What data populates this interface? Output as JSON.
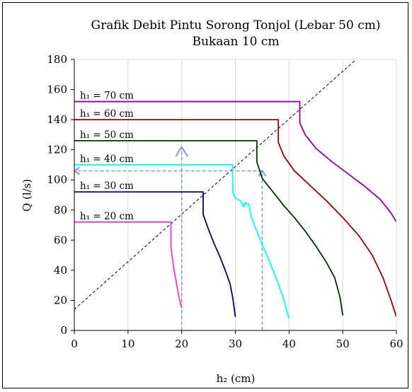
{
  "chart_data": {
    "type": "line",
    "title": "Grafik Debit Pintu Sorong Tonjol (Lebar 50 cm)",
    "subtitle": "Bukaan 10 cm",
    "xlabel": "h₂ (cm)",
    "ylabel": "Q (l/s)",
    "xlim": [
      0,
      60
    ],
    "ylim": [
      0,
      180
    ],
    "xticks": [
      "0",
      "10",
      "20",
      "30",
      "40",
      "50",
      "60"
    ],
    "yticks": [
      "0",
      "20",
      "40",
      "60",
      "80",
      "100",
      "120",
      "140",
      "160",
      "180"
    ],
    "grid": "vertical",
    "series": [
      {
        "name": "h₁ = 20 cm",
        "color": "#ff33cc",
        "x": [
          0,
          18,
          18,
          18.5,
          19,
          19.5,
          20
        ],
        "y": [
          72,
          72,
          55,
          42,
          32,
          22,
          15
        ]
      },
      {
        "name": "h₁ = 30 cm",
        "color": "#000066",
        "x": [
          0,
          24,
          24,
          25,
          26,
          27,
          28,
          29,
          29.5,
          30
        ],
        "y": [
          92,
          92,
          77,
          67,
          58,
          50,
          41,
          31,
          22,
          9
        ]
      },
      {
        "name": "h₁ = 40 cm",
        "color": "#00ffff",
        "x": [
          0,
          29.5,
          29.5,
          30,
          31,
          31.5,
          32,
          31.5,
          32.5,
          33,
          34,
          35,
          36,
          37,
          38,
          39,
          39.5,
          40
        ],
        "y": [
          110,
          110,
          92,
          88,
          86,
          82,
          85,
          84,
          84,
          75,
          66,
          57,
          49,
          40,
          31,
          21,
          14,
          8
        ],
        "label_x": 31.5,
        "label_y": 84
      },
      {
        "name": "h₁ = 50 cm",
        "color": "#003300",
        "x": [
          0,
          34,
          34,
          35,
          37,
          39,
          41,
          43,
          45,
          47,
          48.5,
          49.5,
          50
        ],
        "y": [
          126,
          126,
          112,
          101,
          92,
          83,
          75,
          66,
          56,
          45,
          35,
          22,
          10
        ]
      },
      {
        "name": "h₁ = 60 cm",
        "color": "#990000",
        "x": [
          0,
          38,
          38,
          39,
          41,
          44,
          47,
          50,
          53,
          55.5,
          57.5,
          59,
          60
        ],
        "y": [
          140,
          140,
          125,
          116,
          106,
          96,
          86,
          75,
          63,
          50,
          35,
          20,
          9
        ]
      },
      {
        "name": "h₁ = 70 cm",
        "color": "#990099",
        "x": [
          0,
          42,
          42,
          43,
          45,
          48,
          51,
          54,
          57,
          59,
          60
        ],
        "y": [
          152,
          152,
          138,
          130,
          121,
          112,
          104,
          96,
          87,
          78,
          72
        ]
      }
    ],
    "reference_line": {
      "x": [
        0,
        52.5
      ],
      "y": [
        14,
        180
      ],
      "style": "dashed",
      "color": "#000000"
    },
    "annotations": [
      {
        "type": "arrow-up",
        "x": [
          20,
          20
        ],
        "y": [
          0,
          122
        ],
        "color": "#7f9fcf"
      },
      {
        "type": "arrow-up",
        "x": [
          35,
          35
        ],
        "y": [
          0,
          106
        ],
        "color": "#7f9fcf"
      },
      {
        "type": "arrow-left",
        "x": [
          35,
          0
        ],
        "y": [
          106,
          106
        ],
        "color": "#7f9fcf"
      }
    ]
  }
}
